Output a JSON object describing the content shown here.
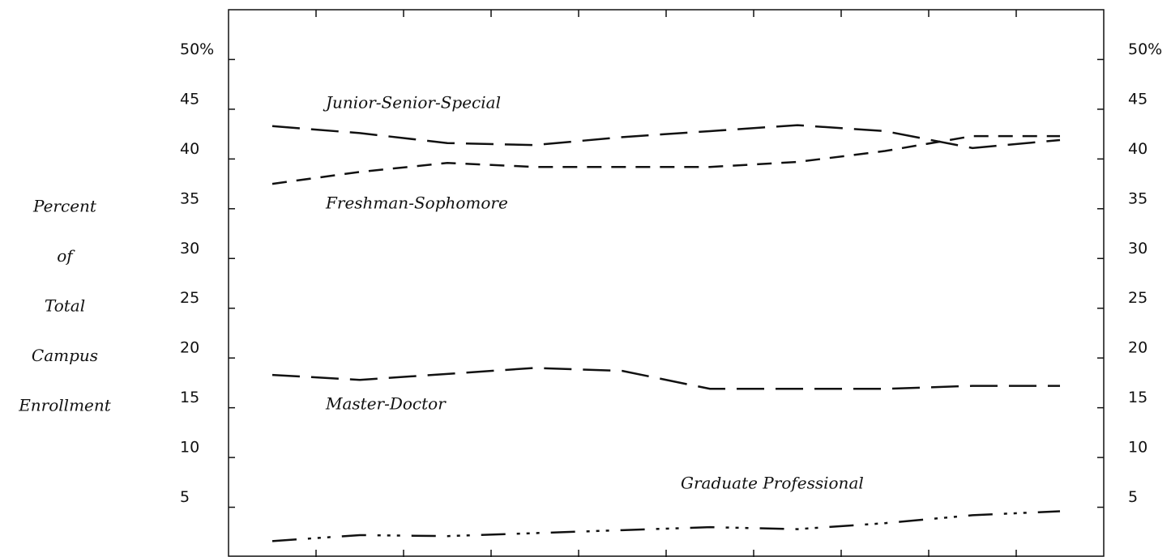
{
  "chart_data": {
    "type": "line",
    "y_label": [
      "Percent",
      "of",
      "Total",
      "Campus",
      "Enrollment"
    ],
    "categories": [
      null,
      null,
      null,
      null,
      null,
      null,
      null,
      null,
      null,
      null
    ],
    "series": [
      {
        "name": "Junior-Senior-Special",
        "color": "#111111",
        "style": "long-dash",
        "values": [
          43.3,
          42.6,
          41.6,
          41.4,
          42.2,
          42.8,
          43.4,
          42.8,
          41.1,
          41.9
        ]
      },
      {
        "name": "Freshman-Sophomore",
        "color": "#111111",
        "style": "short-dash",
        "values": [
          37.5,
          38.7,
          39.6,
          39.2,
          39.2,
          39.2,
          39.7,
          40.8,
          42.3,
          42.3
        ]
      },
      {
        "name": "Master-Doctor",
        "color": "#111111",
        "style": "long-dash",
        "values": [
          18.3,
          17.8,
          18.4,
          19.0,
          18.7,
          16.9,
          16.9,
          16.9,
          17.2,
          17.2
        ]
      },
      {
        "name": "Graduate Professional",
        "color": "#111111",
        "style": "dash-dot",
        "values": [
          1.6,
          2.2,
          2.1,
          2.4,
          2.7,
          3.0,
          2.8,
          3.4,
          4.2,
          4.6
        ]
      }
    ],
    "ylim": [
      0,
      55
    ],
    "yticks": [
      {
        "value": 50,
        "label": "50%"
      },
      45,
      40,
      35,
      30,
      25,
      20,
      15,
      10,
      5
    ]
  }
}
